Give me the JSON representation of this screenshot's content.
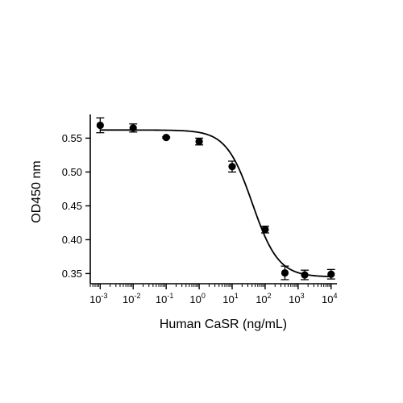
{
  "chart_data": {
    "type": "scatter",
    "xlabel": "Human CaSR (ng/mL)",
    "ylabel": "OD450 nm",
    "x_scale": "log10",
    "xlim": [
      0.0005,
      15000
    ],
    "ylim": [
      0.335,
      0.585
    ],
    "x_ticks": [
      {
        "value": 0.001,
        "base": "10",
        "exp": "-3"
      },
      {
        "value": 0.01,
        "base": "10",
        "exp": "-2"
      },
      {
        "value": 0.1,
        "base": "10",
        "exp": "-1"
      },
      {
        "value": 1,
        "base": "10",
        "exp": "0"
      },
      {
        "value": 10,
        "base": "10",
        "exp": "1"
      },
      {
        "value": 100,
        "base": "10",
        "exp": "2"
      },
      {
        "value": 1000,
        "base": "10",
        "exp": "3"
      },
      {
        "value": 10000,
        "base": "10",
        "exp": "4"
      }
    ],
    "y_ticks": [
      {
        "value": 0.35,
        "label": "0.35"
      },
      {
        "value": 0.4,
        "label": "0.40"
      },
      {
        "value": 0.45,
        "label": "0.45"
      },
      {
        "value": 0.5,
        "label": "0.50"
      },
      {
        "value": 0.55,
        "label": "0.55"
      }
    ],
    "grid": false,
    "legend": "none",
    "color": "#000000",
    "points": [
      {
        "x": 0.001,
        "y": 0.569,
        "err": 0.011
      },
      {
        "x": 0.01,
        "y": 0.565,
        "err": 0.006
      },
      {
        "x": 0.1,
        "y": 0.551,
        "err": 0.001
      },
      {
        "x": 1,
        "y": 0.545,
        "err": 0.005
      },
      {
        "x": 10,
        "y": 0.508,
        "err": 0.008
      },
      {
        "x": 100,
        "y": 0.415,
        "err": 0.005
      },
      {
        "x": 398,
        "y": 0.351,
        "err": 0.01
      },
      {
        "x": 1585,
        "y": 0.348,
        "err": 0.007
      },
      {
        "x": 10000,
        "y": 0.349,
        "err": 0.007
      }
    ],
    "fit_curve": {
      "model": "4PL",
      "top": 0.562,
      "bottom": 0.345,
      "ec50": 41,
      "hill": 1.1,
      "x_range": [
        0.001,
        10000
      ]
    }
  }
}
